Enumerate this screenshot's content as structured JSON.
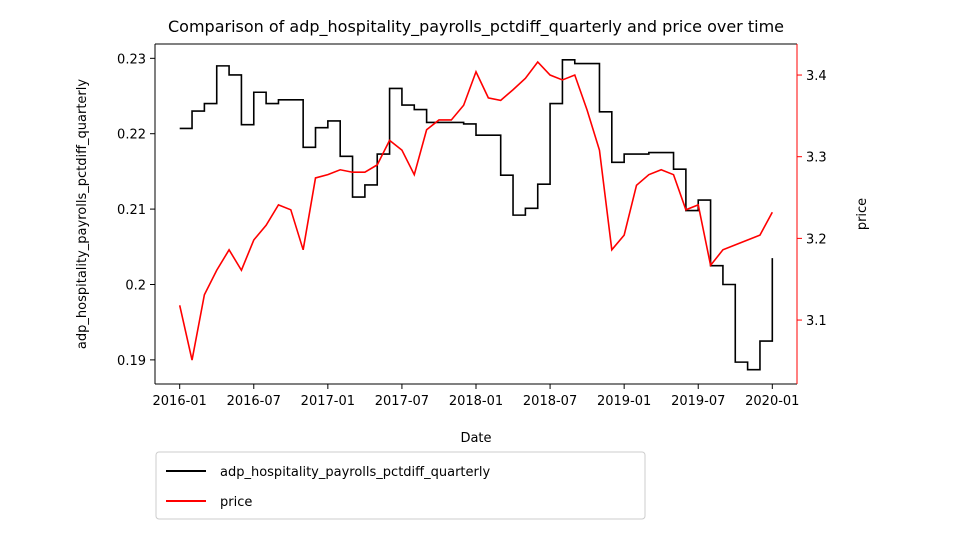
{
  "chart_data": {
    "type": "line",
    "title": "Comparison of adp_hospitality_payrolls_pctdiff_quarterly and price over time",
    "x_label": "Date",
    "y_label": "adp_hospitality_payrolls_pctdiff_quarterly",
    "y2_label": "price",
    "y2_label_color": "#ff0000",
    "drawstyle": "steps-post",
    "x": [
      "2016-01",
      "2016-02",
      "2016-03",
      "2016-04",
      "2016-05",
      "2016-06",
      "2016-07",
      "2016-08",
      "2016-09",
      "2016-10",
      "2016-11",
      "2016-12",
      "2017-01",
      "2017-02",
      "2017-03",
      "2017-04",
      "2017-05",
      "2017-06",
      "2017-07",
      "2017-08",
      "2017-09",
      "2017-10",
      "2017-11",
      "2017-12",
      "2018-01",
      "2018-02",
      "2018-03",
      "2018-04",
      "2018-05",
      "2018-06",
      "2018-07",
      "2018-08",
      "2018-09",
      "2018-10",
      "2018-11",
      "2018-12",
      "2019-01",
      "2019-02",
      "2019-03",
      "2019-04",
      "2019-05",
      "2019-06",
      "2019-07",
      "2019-08",
      "2019-09",
      "2019-10",
      "2019-11",
      "2019-12",
      "2020-01"
    ],
    "xlim": [
      "2015-11",
      "2020-03"
    ],
    "xticks": [
      "2016-01",
      "2016-07",
      "2017-01",
      "2017-07",
      "2018-01",
      "2018-07",
      "2019-01",
      "2019-07",
      "2020-01"
    ],
    "ylim": [
      0.1868,
      0.2319
    ],
    "yticks": [
      0.19,
      0.2,
      0.21,
      0.22,
      0.23
    ],
    "y2lim": [
      3.0217,
      3.438
    ],
    "y2ticks": [
      3.1,
      3.2,
      3.3,
      3.4
    ],
    "legend": "below",
    "series": [
      {
        "name": "adp_hospitality_payrolls_pctdiff_quarterly",
        "color": "#000000",
        "values": [
          0.2207,
          0.223,
          0.224,
          0.229,
          0.2278,
          0.2212,
          0.2255,
          0.224,
          0.2245,
          0.2245,
          0.2182,
          0.2208,
          0.2217,
          0.217,
          0.2116,
          0.2132,
          0.2173,
          0.226,
          0.2238,
          0.2232,
          0.2215,
          0.2215,
          0.2215,
          0.2213,
          0.2198,
          0.2198,
          0.2145,
          0.2092,
          0.2101,
          0.2133,
          0.224,
          0.2298,
          0.2293,
          0.2293,
          0.2229,
          0.2162,
          0.2173,
          0.2173,
          0.2175,
          0.2175,
          0.2153,
          0.2098,
          0.2112,
          0.2025,
          0.2,
          0.1897,
          0.1887,
          0.1925,
          0.2035
        ]
      },
      {
        "name": "price",
        "color": "#ff0000",
        "axis": "y2",
        "values": [
          3.118,
          3.051,
          3.131,
          3.161,
          3.186,
          3.161,
          3.198,
          3.216,
          3.241,
          3.235,
          3.186,
          3.274,
          3.278,
          3.284,
          3.281,
          3.281,
          3.29,
          3.32,
          3.308,
          3.278,
          3.333,
          3.345,
          3.345,
          3.363,
          3.404,
          3.372,
          3.369,
          3.382,
          3.396,
          3.416,
          3.4,
          3.394,
          3.4,
          3.357,
          3.308,
          3.186,
          3.204,
          3.265,
          3.278,
          3.284,
          3.278,
          3.235,
          3.241,
          3.167,
          3.186,
          3.192,
          3.198,
          3.204,
          3.232
        ]
      }
    ]
  }
}
